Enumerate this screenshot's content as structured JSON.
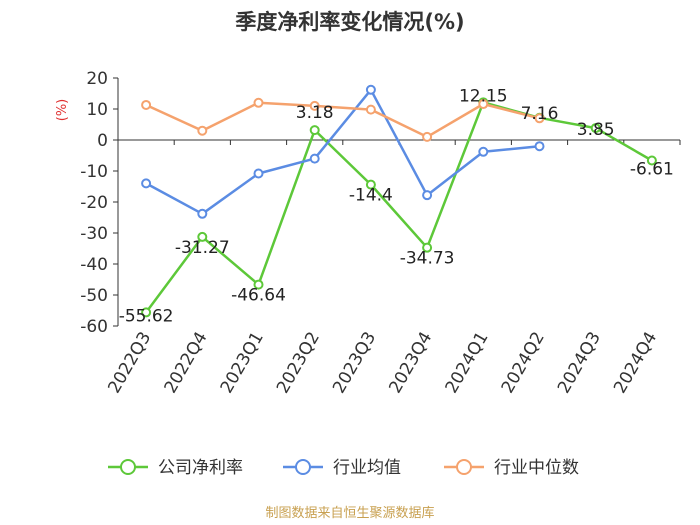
{
  "chart_data": {
    "type": "line",
    "title": "季度净利率变化情况(%)",
    "ylabel": "(%)",
    "xlabel": "",
    "ylim": [
      -60,
      20
    ],
    "yticks": [
      20,
      10,
      0,
      -10,
      -20,
      -30,
      -40,
      -50,
      -60
    ],
    "grid": false,
    "legend_position": "bottom",
    "categories": [
      "2022Q3",
      "2022Q4",
      "2023Q1",
      "2023Q2",
      "2023Q3",
      "2023Q4",
      "2024Q1",
      "2024Q2",
      "2024Q3",
      "2024Q4"
    ],
    "series": [
      {
        "name": "公司净利率",
        "color": "#5dc839",
        "values": [
          -55.62,
          -31.27,
          -46.64,
          3.18,
          -14.4,
          -34.73,
          12.15,
          7.16,
          3.85,
          -6.61
        ],
        "labels": [
          "-55.62",
          "-31.27",
          "-46.64",
          "3.18",
          "-14.4",
          "-34.73",
          "12.15",
          "7.16",
          "3.85",
          "-6.61"
        ]
      },
      {
        "name": "行业均值",
        "color": "#5b8ce3",
        "values": [
          -14.0,
          -23.8,
          -10.8,
          -6.0,
          16.2,
          -17.8,
          -3.8,
          -2.0,
          null,
          null
        ]
      },
      {
        "name": "行业中位数",
        "color": "#f5a26d",
        "values": [
          11.3,
          3.0,
          12.0,
          11.0,
          9.8,
          1.0,
          11.6,
          7.0,
          null,
          null
        ]
      }
    ]
  },
  "source_text": "制图数据来自恒生聚源数据库"
}
